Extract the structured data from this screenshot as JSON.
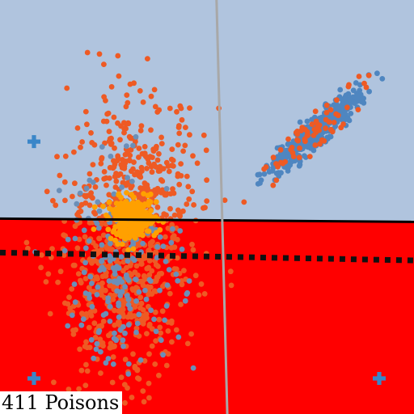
{
  "caption": "411 Poisons",
  "chart_data": {
    "type": "scatter",
    "xlim": [
      0,
      1
    ],
    "ylim": [
      0,
      1
    ],
    "grid": false,
    "regions": [
      {
        "name": "",
        "color": "#b0c4de",
        "polygon": [
          [
            0,
            1
          ],
          [
            1,
            1
          ],
          [
            1,
            0.464
          ],
          [
            0,
            0.472
          ]
        ]
      },
      {
        "name": "",
        "color": "#ff0000",
        "polygon": [
          [
            0,
            0.472
          ],
          [
            1,
            0.464
          ],
          [
            1,
            0
          ],
          [
            0,
            0
          ]
        ]
      }
    ],
    "lines": [
      {
        "kind": "decision-boundary",
        "style": "solid",
        "color": "#000000",
        "points": [
          [
            0,
            0.472
          ],
          [
            1,
            0.464
          ]
        ]
      },
      {
        "kind": "reference-boundary",
        "style": "dotted",
        "color": "#111111",
        "points": [
          [
            0,
            0.39
          ],
          [
            1,
            0.371
          ]
        ]
      },
      {
        "kind": "divider",
        "style": "solid",
        "color": "#a8a8a8",
        "points": [
          [
            0.523,
            1
          ],
          [
            0.549,
            0
          ]
        ]
      }
    ],
    "markers": [
      {
        "symbol": "plus",
        "color": "#3a86c8",
        "x": 0.082,
        "y": 0.658
      },
      {
        "symbol": "plus",
        "color": "#3a86c8",
        "x": 0.082,
        "y": 0.086
      },
      {
        "symbol": "plus",
        "color": "#3a86c8",
        "x": 0.916,
        "y": 0.086
      }
    ],
    "series": [
      {
        "color": "#4f86c0",
        "shape": "elongated-cluster",
        "count": 520,
        "center": [
          0.76,
          0.68
        ],
        "spread": [
          0.013,
          0.07
        ],
        "angle": 48
      },
      {
        "color": "#ee5a24",
        "shape": "elongated-cluster",
        "count": 70,
        "center": [
          0.76,
          0.68
        ],
        "spread": [
          0.02,
          0.09
        ],
        "angle": 48
      },
      {
        "color": "#ee5a24",
        "shape": "cluster",
        "count": 420,
        "center": [
          0.33,
          0.53
        ],
        "spread": [
          0.08,
          0.12
        ],
        "angle": 0
      },
      {
        "color": "#ee5a24",
        "shape": "cluster",
        "count": 430,
        "center": [
          0.29,
          0.3
        ],
        "spread": [
          0.075,
          0.13
        ],
        "angle": 0
      },
      {
        "color": "#6b8fb8",
        "shape": "cluster",
        "count": 190,
        "center": [
          0.3,
          0.36
        ],
        "spread": [
          0.07,
          0.12
        ],
        "angle": 0
      },
      {
        "color": "#ffa000",
        "shape": "cluster",
        "count": 260,
        "center": [
          0.32,
          0.47
        ],
        "spread": [
          0.03,
          0.025
        ],
        "angle": 0
      }
    ]
  }
}
